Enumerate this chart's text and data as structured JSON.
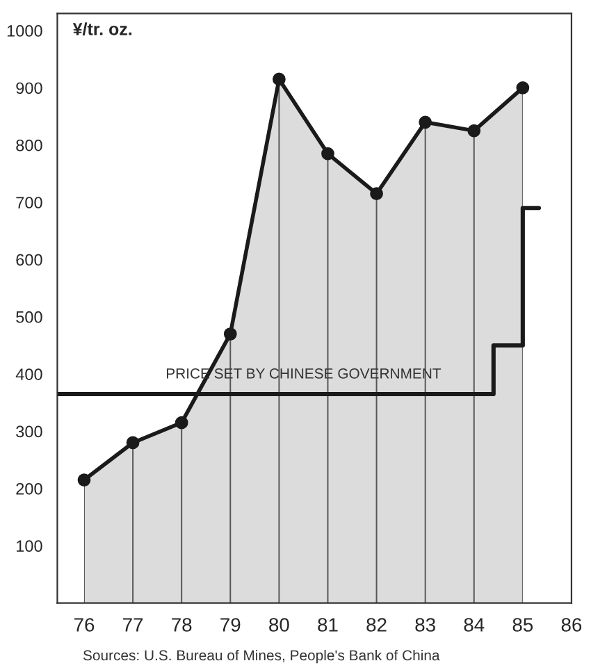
{
  "chart_data": {
    "type": "area",
    "ylabel": "¥/tr. oz.",
    "x": [
      76,
      77,
      78,
      79,
      80,
      81,
      82,
      83,
      84,
      85
    ],
    "series": [
      {
        "color": "#1a1a1a",
        "values": [
          215,
          280,
          315,
          470,
          915,
          785,
          715,
          840,
          825,
          900
        ],
        "marker": "circle"
      },
      {
        "type": "step",
        "color": "#1a1a1a",
        "x": [
          75.45,
          84.4,
          85.0,
          85.33
        ],
        "values": [
          365,
          450,
          690,
          690
        ],
        "marker": "none"
      }
    ],
    "xlim": [
      75.45,
      86
    ],
    "xticks": [
      76,
      77,
      78,
      79,
      80,
      81,
      82,
      83,
      84,
      85,
      86
    ],
    "ylim": [
      0,
      1030
    ],
    "yticks": [
      100,
      200,
      300,
      400,
      500,
      600,
      700,
      800,
      900,
      1000
    ],
    "annotations": [
      {
        "text": "PRICE SET BY CHINESE GOVERNMENT",
        "x": 80.5,
        "y": 365
      },
      "Sources: U.S. Bureau of Mines, People's Bank of China"
    ],
    "grid": "x",
    "legend": false
  }
}
